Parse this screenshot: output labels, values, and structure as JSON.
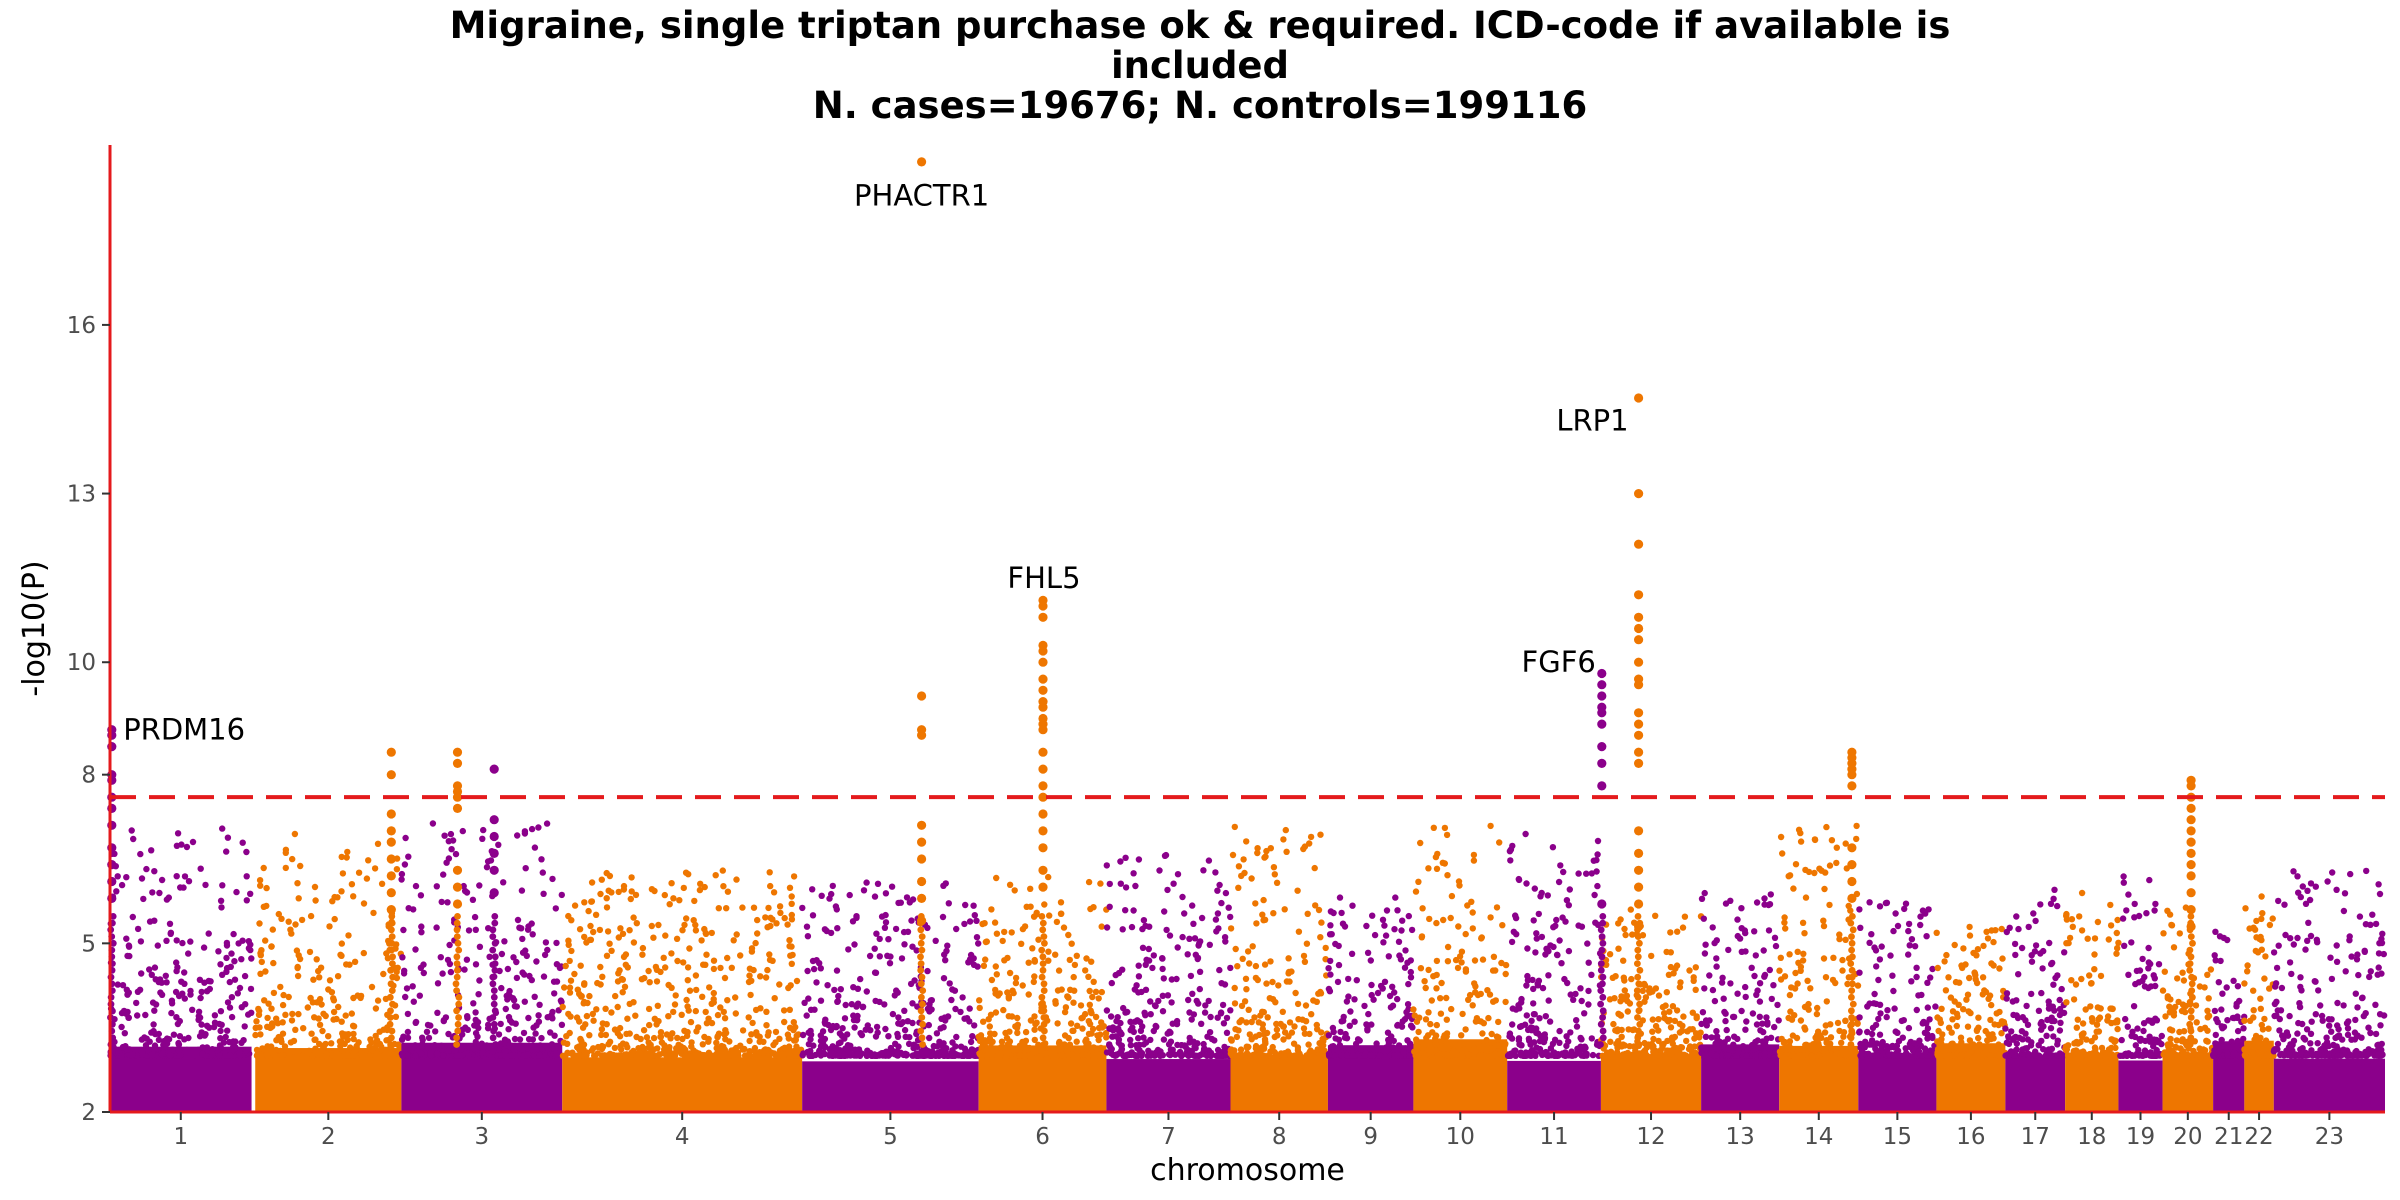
{
  "title": {
    "line1": "Migraine, single triptan purchase ok & required. ICD-code if available is",
    "line2": "included",
    "line3": "N. cases=19676; N. controls=199116"
  },
  "colors": {
    "odd": "#8B008B",
    "even": "#EE7600",
    "axis": "#E41A1C",
    "threshold": "#E41A1C"
  },
  "chart_data": {
    "type": "scatter",
    "subtype": "manhattan",
    "xlabel": "chromosome",
    "ylabel": "-log10(P)",
    "ylim": [
      2,
      19.2
    ],
    "yticks": [
      2,
      5,
      8,
      10,
      13,
      16
    ],
    "threshold": 7.6,
    "grid": false,
    "chromosomes": [
      {
        "label": "1",
        "start": 0,
        "end": 154,
        "peak_background": 7.1
      },
      {
        "label": "2",
        "start": 158,
        "end": 317,
        "peak_background": 7.0
      },
      {
        "label": "3",
        "start": 317,
        "end": 492,
        "peak_background": 7.2
      },
      {
        "label": "4",
        "start": 492,
        "end": 753,
        "peak_background": 6.3
      },
      {
        "label": "5",
        "start": 753,
        "end": 945,
        "peak_background": 6.1
      },
      {
        "label": "6",
        "start": 945,
        "end": 1084,
        "peak_background": 6.2
      },
      {
        "label": "7",
        "start": 1084,
        "end": 1219,
        "peak_background": 6.7
      },
      {
        "label": "8",
        "start": 1219,
        "end": 1325,
        "peak_background": 7.1
      },
      {
        "label": "9",
        "start": 1325,
        "end": 1418,
        "peak_background": 5.9
      },
      {
        "label": "10",
        "start": 1418,
        "end": 1520,
        "peak_background": 7.2
      },
      {
        "label": "11",
        "start": 1520,
        "end": 1622,
        "peak_background": 7.0
      },
      {
        "label": "12",
        "start": 1622,
        "end": 1731,
        "peak_background": 5.6
      },
      {
        "label": "13",
        "start": 1731,
        "end": 1816,
        "peak_background": 5.9
      },
      {
        "label": "14",
        "start": 1816,
        "end": 1902,
        "peak_background": 7.1
      },
      {
        "label": "15",
        "start": 1902,
        "end": 1987,
        "peak_background": 5.8
      },
      {
        "label": "16",
        "start": 1987,
        "end": 2062,
        "peak_background": 5.3
      },
      {
        "label": "17",
        "start": 2062,
        "end": 2127,
        "peak_background": 6.0
      },
      {
        "label": "18",
        "start": 2127,
        "end": 2185,
        "peak_background": 6.3
      },
      {
        "label": "19",
        "start": 2185,
        "end": 2233,
        "peak_background": 6.2
      },
      {
        "label": "20",
        "start": 2233,
        "end": 2288,
        "peak_background": 5.7
      },
      {
        "label": "21",
        "start": 2288,
        "end": 2322,
        "peak_background": 5.4
      },
      {
        "label": "22",
        "start": 2322,
        "end": 2354,
        "peak_background": 6.0
      },
      {
        "label": "23",
        "start": 2354,
        "end": 2475,
        "peak_background": 6.3
      }
    ],
    "significant_loci": [
      {
        "chrom": "1",
        "pos": 2,
        "values": [
          8.8,
          8.7,
          8.5,
          8.0,
          7.9,
          7.6,
          7.4,
          7.1,
          6.7,
          6.4,
          6.1,
          5.8
        ]
      },
      {
        "chrom": "2",
        "pos": 306,
        "values": [
          8.4,
          8.0,
          7.3,
          7.0,
          6.8,
          6.5,
          6.2,
          5.9,
          5.6
        ]
      },
      {
        "chrom": "2",
        "pos": 378,
        "values": [
          8.4,
          8.2,
          7.8,
          7.7,
          7.6,
          7.4,
          6.3,
          6.0,
          5.7
        ]
      },
      {
        "chrom": "3",
        "pos": 418,
        "values": [
          8.1,
          7.2,
          6.9,
          6.6,
          6.3,
          5.9
        ]
      },
      {
        "chrom": "6",
        "pos": 883,
        "values": [
          18.9,
          9.4,
          8.8,
          8.7,
          7.1,
          6.8,
          6.5,
          6.1,
          5.8,
          5.4
        ]
      },
      {
        "chrom": "6",
        "pos": 1015,
        "values": [
          11.1,
          11.0,
          10.8,
          10.3,
          10.2,
          10.0,
          9.7,
          9.5,
          9.3,
          9.2,
          9.0,
          8.8,
          8.9,
          8.4,
          8.1,
          7.8,
          7.6,
          7.3,
          7.0,
          6.7,
          6.3,
          6.0
        ]
      },
      {
        "chrom": "11",
        "pos": 1623,
        "values": [
          9.8,
          9.6,
          9.4,
          9.2,
          9.1,
          8.9,
          8.5,
          8.2,
          7.8,
          5.7
        ]
      },
      {
        "chrom": "12",
        "pos": 1663,
        "values": [
          14.7,
          13.0,
          12.1,
          11.2,
          10.8,
          10.6,
          10.4,
          10.0,
          9.7,
          9.6,
          9.1,
          8.9,
          8.7,
          8.4,
          8.2,
          7.0,
          6.6,
          6.3,
          6.0,
          5.7,
          5.3
        ]
      },
      {
        "chrom": "14",
        "pos": 1895,
        "values": [
          8.4,
          8.3,
          8.2,
          8.1,
          8.0,
          7.8,
          6.7,
          6.4,
          6.1,
          5.8
        ]
      },
      {
        "chrom": "20",
        "pos": 2264,
        "values": [
          7.9,
          7.8,
          7.6,
          7.4,
          7.2,
          7.0,
          6.8,
          6.6,
          6.4,
          6.2,
          5.9,
          5.6,
          5.3
        ]
      }
    ],
    "annotations": [
      {
        "text": "PRDM16",
        "chrom": "1",
        "pos": 10,
        "y": 8.8
      },
      {
        "text": "PHACTR1",
        "chrom": "6",
        "pos": 883,
        "y": 18.3
      },
      {
        "text": "FHL5",
        "chrom": "6",
        "pos": 1015,
        "y": 11.5
      },
      {
        "text": "FGF6",
        "chrom": "11",
        "pos": 1623,
        "y": 10.0
      },
      {
        "text": "LRP1",
        "chrom": "12",
        "pos": 1663,
        "y": 14.3
      }
    ]
  }
}
